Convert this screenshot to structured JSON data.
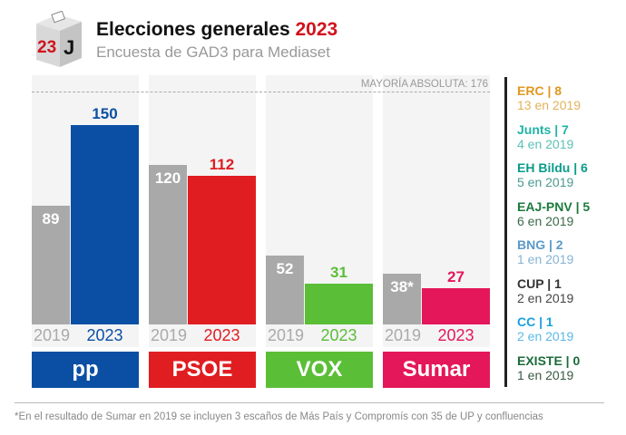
{
  "header": {
    "title": "Elecciones generales",
    "title_year": "2023",
    "subtitle": "Encuesta de GAD3 para Mediaset",
    "logo_text_number": "23",
    "logo_text_letter": "J"
  },
  "chart_data": {
    "type": "bar",
    "categories": [
      "PP",
      "PSOE",
      "VOX",
      "Sumar"
    ],
    "series": [
      {
        "name": "2019",
        "values": [
          89,
          120,
          52,
          38
        ]
      },
      {
        "name": "2023",
        "values": [
          150,
          112,
          31,
          27
        ]
      }
    ],
    "value_labels_2019": [
      "89",
      "120",
      "52",
      "38*"
    ],
    "year_labels": [
      "2019",
      "2023"
    ],
    "ylim": [
      0,
      176
    ],
    "majority": {
      "value": 176,
      "label": "MAYORÍA ABSOLUTA: 176"
    },
    "colors": {
      "2019": "#a9a9a9",
      "PP": "#0b4fa4",
      "PSOE": "#e01d21",
      "VOX": "#5bbe37",
      "Sumar": "#e4175a"
    },
    "party_logos": [
      "pp",
      "PSOE",
      "VOX",
      "Sumar"
    ]
  },
  "others": [
    {
      "label": "ERC | 8",
      "prev": "13 en 2019",
      "color": "#e0981f",
      "prev_color": "#e2b25a"
    },
    {
      "label": "Junts | 7",
      "prev": "4 en 2019",
      "color": "#1fb4a5",
      "prev_color": "#5cc1b7"
    },
    {
      "label": "EH Bildu | 6",
      "prev": "5 en 2019",
      "color": "#0a9b8b",
      "prev_color": "#4a9a90"
    },
    {
      "label": "EAJ-PNV | 5",
      "prev": "6 en 2019",
      "color": "#1c7a3c",
      "prev_color": "#3b6a4a"
    },
    {
      "label": "BNG | 2",
      "prev": "1 en 2019",
      "color": "#5b99c8",
      "prev_color": "#86b3d3"
    },
    {
      "label": "CUP | 1",
      "prev": "2 en 2019",
      "color": "#333333",
      "prev_color": "#444444"
    },
    {
      "label": "CC | 1",
      "prev": "2 en 2019",
      "color": "#1a9fe0",
      "prev_color": "#5ab8e6"
    },
    {
      "label": "EXISTE | 0",
      "prev": "1 en 2019",
      "color": "#1b6b3a",
      "prev_color": "#3b5a45"
    }
  ],
  "footnote": "*En el resultado de Sumar en 2019 se incluyen 3 escaños de Más País y Compromís con 35 de UP y confluencias"
}
